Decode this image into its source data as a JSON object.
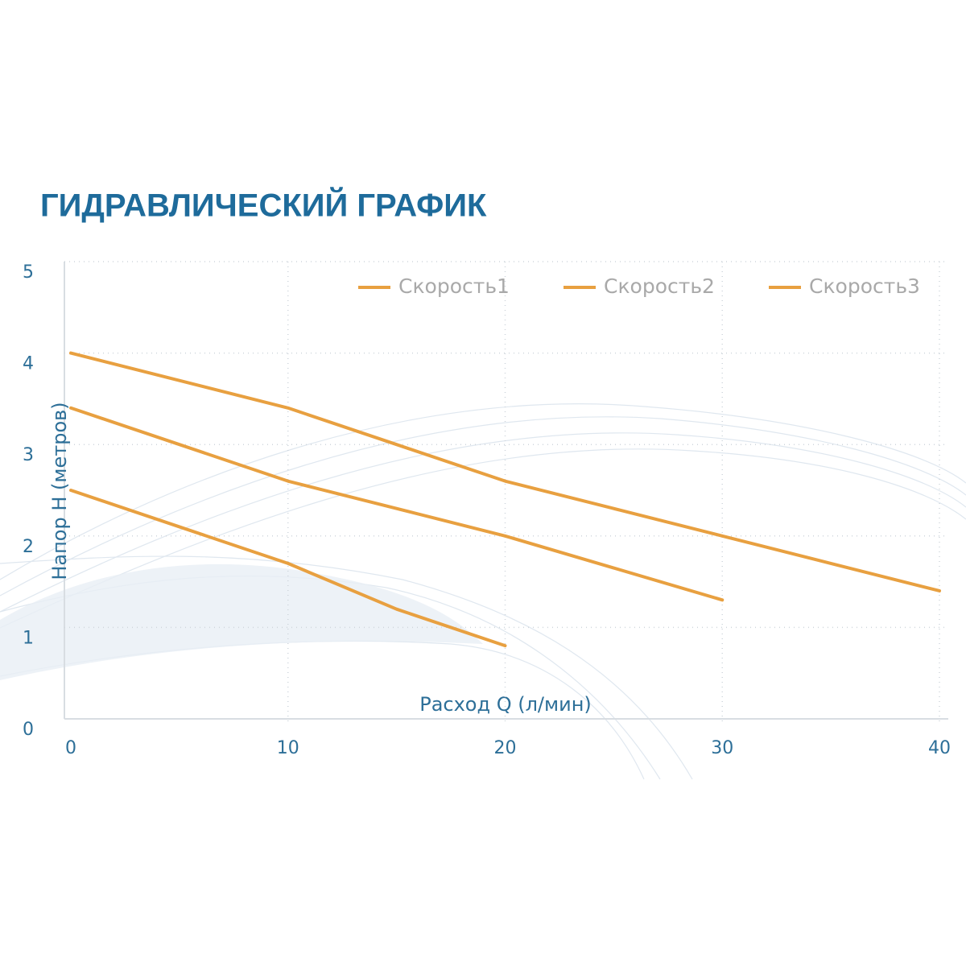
{
  "chart_data": {
    "type": "line",
    "title": "ГИДРАВЛИЧЕСКИЙ ГРАФИК",
    "x_label": "Расход Q (л/мин)",
    "y_label": "Напор Н (метров)",
    "xlim": [
      0,
      40
    ],
    "xticks": [
      0,
      10,
      20,
      30,
      40
    ],
    "ylim": [
      0,
      5
    ],
    "yticks": [
      0,
      1,
      2,
      3,
      4,
      5
    ],
    "grid": true,
    "legend": "upper right",
    "series": [
      {
        "name": "Скорость1",
        "color": "#e8a040",
        "x": [
          0,
          5,
          10,
          15,
          20
        ],
        "values": [
          2.5,
          2.1,
          1.7,
          1.2,
          0.8
        ]
      },
      {
        "name": "Скорость2",
        "color": "#e8a040",
        "x": [
          0,
          5,
          10,
          15,
          20,
          25,
          30
        ],
        "values": [
          3.4,
          3.0,
          2.6,
          2.3,
          2.0,
          1.65,
          1.3
        ]
      },
      {
        "name": "Скорость3",
        "color": "#e8a040",
        "x": [
          0,
          5,
          10,
          15,
          20,
          25,
          30,
          35,
          40
        ],
        "values": [
          4.0,
          3.7,
          3.4,
          3.0,
          2.6,
          2.3,
          2.0,
          1.7,
          1.4
        ]
      }
    ]
  }
}
